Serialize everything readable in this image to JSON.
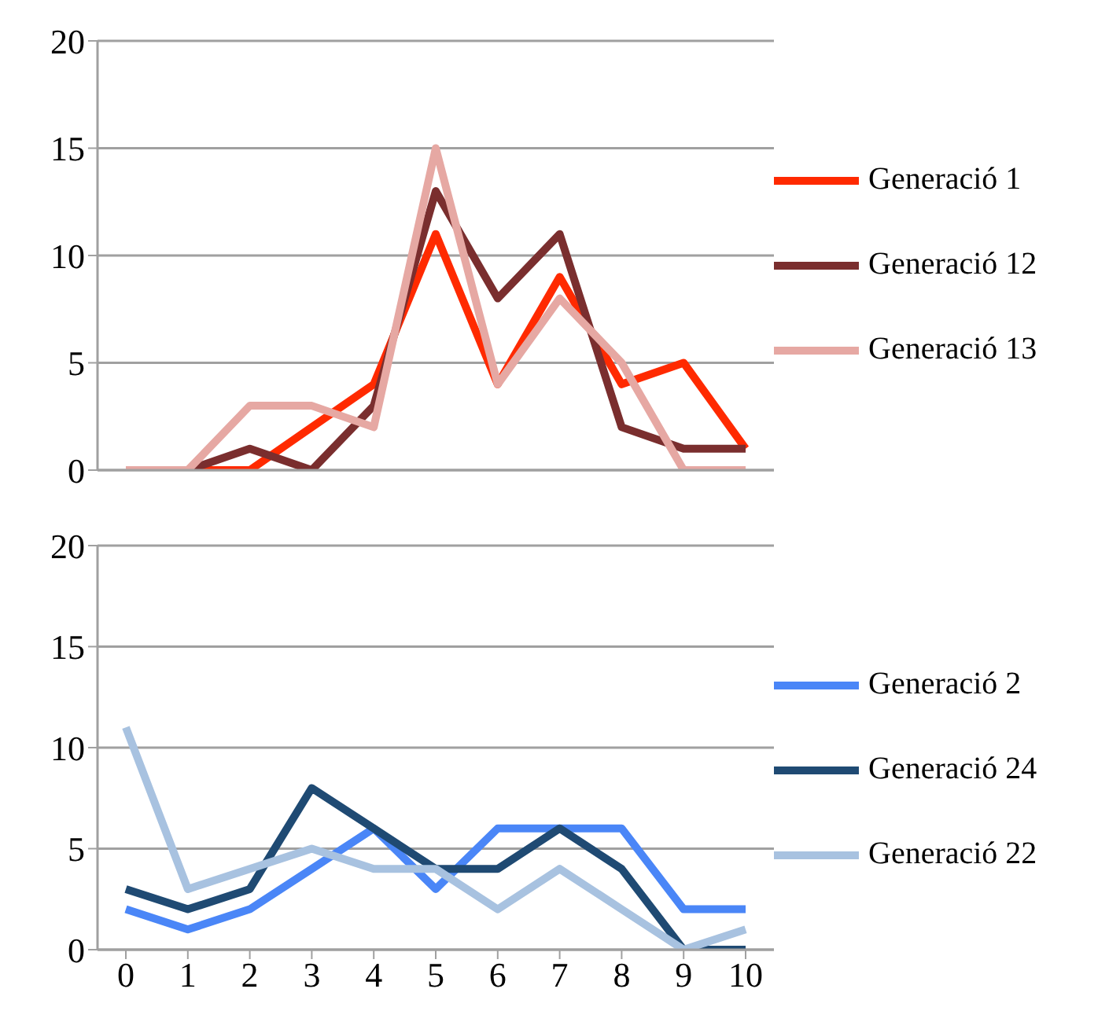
{
  "chart_data": [
    {
      "type": "line",
      "categories": [
        "0",
        "1",
        "2",
        "3",
        "4",
        "5",
        "6",
        "7",
        "8",
        "9",
        "10"
      ],
      "ylim": [
        0,
        20
      ],
      "yticks": [
        0,
        5,
        10,
        15,
        20
      ],
      "grid": "y",
      "legend": "right",
      "tick_labels": "y",
      "marker": "none",
      "series": [
        {
          "name": "Generació 1",
          "color": "#ff2a00",
          "values": [
            0,
            0,
            0,
            2,
            4,
            11,
            4,
            9,
            4,
            5,
            1
          ]
        },
        {
          "name": "Generació 12",
          "color": "#7a2e2e",
          "values": [
            0,
            0,
            1,
            0,
            3,
            13,
            8,
            11,
            2,
            1,
            1
          ]
        },
        {
          "name": "Generació 13",
          "color": "#e6a8a3",
          "values": [
            0,
            0,
            3,
            3,
            2,
            15,
            4,
            8,
            5,
            0,
            0
          ]
        }
      ]
    },
    {
      "type": "line",
      "categories": [
        "0",
        "1",
        "2",
        "3",
        "4",
        "5",
        "6",
        "7",
        "8",
        "9",
        "10"
      ],
      "ylim": [
        0,
        20
      ],
      "yticks": [
        0,
        5,
        10,
        15,
        20
      ],
      "grid": "y",
      "legend": "right",
      "marker": "none",
      "series": [
        {
          "name": "Generació 2",
          "color": "#4a86f7",
          "values": [
            2,
            1,
            2,
            4,
            6,
            3,
            6,
            6,
            6,
            2,
            2
          ]
        },
        {
          "name": "Generació 24",
          "color": "#1f4a73",
          "values": [
            3,
            2,
            3,
            8,
            6,
            4,
            4,
            6,
            4,
            0,
            0
          ]
        },
        {
          "name": "Generació 22",
          "color": "#a8c2e0",
          "values": [
            11,
            3,
            4,
            5,
            4,
            4,
            2,
            4,
            2,
            0,
            1
          ]
        }
      ]
    }
  ]
}
